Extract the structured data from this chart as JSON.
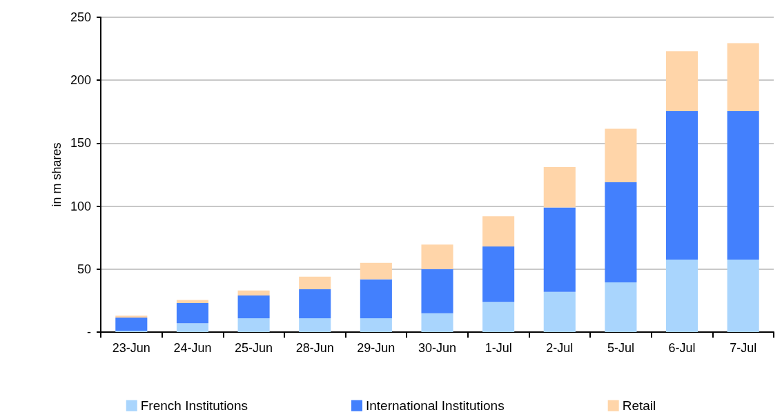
{
  "chart_data": {
    "type": "bar",
    "stacked": true,
    "ylabel": "in m shares",
    "categories": [
      "23-Jun",
      "24-Jun",
      "25-Jun",
      "28-Jun",
      "29-Jun",
      "30-Jun",
      "1-Jul",
      "2-Jul",
      "5-Jul",
      "6-Jul",
      "7-Jul"
    ],
    "series": [
      {
        "name": "French Institutions",
        "color": "#a9d5fd",
        "values": [
          1,
          7,
          11,
          11,
          11,
          15,
          24,
          32,
          39.5,
          57.5,
          57.5
        ]
      },
      {
        "name": "International Institutions",
        "color": "#4380fd",
        "values": [
          10.5,
          16,
          18,
          23,
          31,
          35,
          44,
          67,
          79.5,
          118,
          118
        ]
      },
      {
        "name": "Retail",
        "color": "#ffd5a9",
        "values": [
          1.5,
          2.5,
          4,
          10,
          13,
          19.5,
          24,
          32,
          42.5,
          47.5,
          54
        ]
      }
    ],
    "ylim": [
      0,
      250
    ],
    "yticks": [
      {
        "value": 0,
        "label": "-"
      },
      50,
      100,
      150,
      200,
      250
    ],
    "grid": "y",
    "legend": "bottom"
  }
}
